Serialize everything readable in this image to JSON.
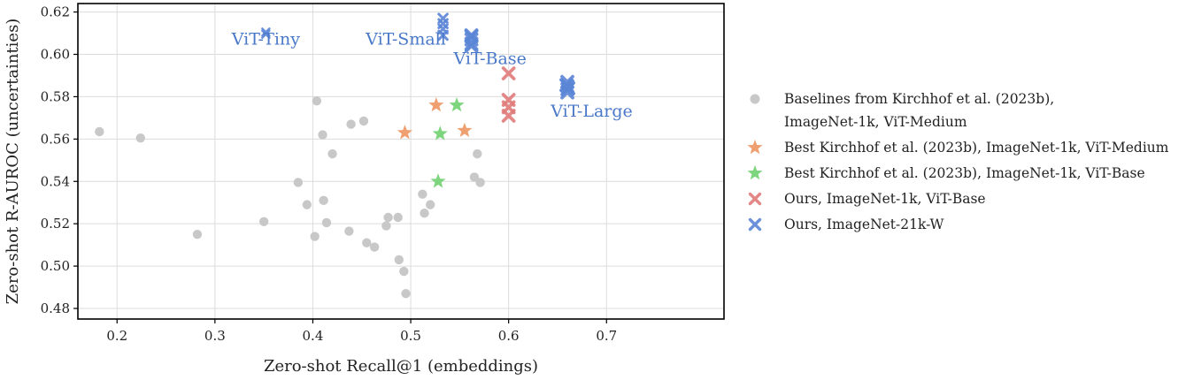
{
  "chart_data": {
    "type": "scatter",
    "xlabel": "Zero-shot Recall@1 (embeddings)",
    "ylabel": "Zero-shot R-AUROC (uncertainties)",
    "xlim": [
      0.16,
      0.82
    ],
    "ylim": [
      0.475,
      0.624
    ],
    "xticks": [
      0.2,
      0.3,
      0.4,
      0.5,
      0.6,
      0.7
    ],
    "xtick_labels": [
      "0.2",
      "0.3",
      "0.4",
      "0.5",
      "0.6",
      "0.7"
    ],
    "yticks": [
      0.48,
      0.5,
      0.52,
      0.54,
      0.56,
      0.58,
      0.6,
      0.62
    ],
    "ytick_labels": [
      "0.48",
      "0.50",
      "0.52",
      "0.54",
      "0.56",
      "0.58",
      "0.60",
      "0.62"
    ],
    "grid": true,
    "legend_position": "right",
    "series": [
      {
        "name": "Baselines from Kirchhof et al. (2023b), ImageNet-1k, ViT-Medium",
        "legend_lines": [
          "Baselines from Kirchhof et al. (2023b),",
          "ImageNet-1k, ViT-Medium"
        ],
        "marker": "circle",
        "color": "#c8c8c8",
        "points": [
          [
            0.182,
            0.5635
          ],
          [
            0.224,
            0.5605
          ],
          [
            0.282,
            0.515
          ],
          [
            0.35,
            0.521
          ],
          [
            0.385,
            0.5395
          ],
          [
            0.394,
            0.529
          ],
          [
            0.404,
            0.578
          ],
          [
            0.402,
            0.514
          ],
          [
            0.41,
            0.562
          ],
          [
            0.411,
            0.531
          ],
          [
            0.414,
            0.5205
          ],
          [
            0.42,
            0.553
          ],
          [
            0.437,
            0.5165
          ],
          [
            0.439,
            0.567
          ],
          [
            0.452,
            0.5685
          ],
          [
            0.455,
            0.511
          ],
          [
            0.463,
            0.509
          ],
          [
            0.475,
            0.519
          ],
          [
            0.477,
            0.523
          ],
          [
            0.487,
            0.523
          ],
          [
            0.488,
            0.503
          ],
          [
            0.493,
            0.4975
          ],
          [
            0.495,
            0.487
          ],
          [
            0.512,
            0.534
          ],
          [
            0.514,
            0.525
          ],
          [
            0.52,
            0.529
          ],
          [
            0.565,
            0.542
          ],
          [
            0.568,
            0.553
          ],
          [
            0.571,
            0.5395
          ]
        ]
      },
      {
        "name": "Best Kirchhof et al. (2023b), ImageNet-1k, ViT-Medium",
        "legend_lines": [
          "Best Kirchhof et al. (2023b), ImageNet-1k, ViT-Medium"
        ],
        "marker": "star",
        "color": "#f0a070",
        "points": [
          [
            0.494,
            0.563
          ],
          [
            0.526,
            0.576
          ],
          [
            0.555,
            0.564
          ]
        ]
      },
      {
        "name": "Best Kirchhof et al. (2023b), ImageNet-1k, ViT-Base",
        "legend_lines": [
          "Best Kirchhof et al. (2023b), ImageNet-1k, ViT-Base"
        ],
        "marker": "star",
        "color": "#7dd67d",
        "points": [
          [
            0.528,
            0.54
          ],
          [
            0.53,
            0.5625
          ],
          [
            0.547,
            0.576
          ]
        ]
      },
      {
        "name": "Ours, ImageNet-1k, ViT-Base",
        "legend_lines": [
          "Ours, ImageNet-1k, ViT-Base"
        ],
        "marker": "x",
        "color": "#e07b7b",
        "points": [
          [
            0.6,
            0.591
          ],
          [
            0.6,
            0.5785
          ],
          [
            0.6,
            0.575
          ],
          [
            0.6,
            0.571
          ]
        ]
      },
      {
        "name": "Ours, ImageNet-21k-W",
        "legend_lines": [
          "Ours, ImageNet-21k-W"
        ],
        "marker": "x",
        "color": "#5b86d6",
        "points": [
          [
            0.352,
            0.6105
          ],
          [
            0.352,
            0.6095
          ],
          [
            0.533,
            0.617
          ],
          [
            0.533,
            0.6145
          ],
          [
            0.533,
            0.612
          ],
          [
            0.533,
            0.609
          ],
          [
            0.562,
            0.609
          ],
          [
            0.562,
            0.607
          ],
          [
            0.562,
            0.605
          ],
          [
            0.562,
            0.604
          ],
          [
            0.562,
            0.6085
          ],
          [
            0.66,
            0.587
          ],
          [
            0.66,
            0.585
          ],
          [
            0.66,
            0.5835
          ],
          [
            0.66,
            0.582
          ],
          [
            0.659,
            0.5855
          ],
          [
            0.661,
            0.584
          ]
        ]
      }
    ],
    "annotations": [
      {
        "text": "ViT-Tiny",
        "x": 0.352,
        "y": 0.6045
      },
      {
        "text": "ViT-Small",
        "x": 0.495,
        "y": 0.6045
      },
      {
        "text": "ViT-Base",
        "x": 0.581,
        "y": 0.5955
      },
      {
        "text": "ViT-Large",
        "x": 0.643,
        "y": 0.5705
      }
    ]
  }
}
